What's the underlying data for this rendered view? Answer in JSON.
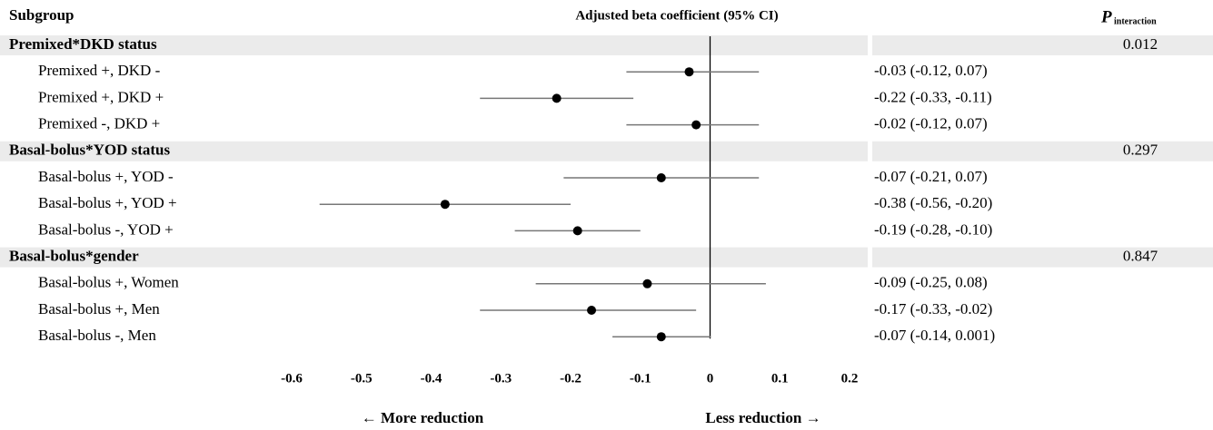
{
  "chart_data": {
    "type": "forest",
    "subgroup_header": "Subgroup",
    "title": "Adjusted beta coefficient (95% CI)",
    "p_header": "P",
    "p_header_sub": "interaction",
    "xlim": [
      -0.6,
      0.2
    ],
    "xticks": [
      -0.6,
      -0.5,
      -0.4,
      -0.3,
      -0.2,
      -0.1,
      0,
      0.1,
      0.2
    ],
    "xlabel_left": "← More reduction",
    "xlabel_right": "Less reduction →",
    "groups": [
      {
        "name": "Premixed*DKD status",
        "p_interaction": 0.012,
        "rows": [
          {
            "label": "Premixed +, DKD -",
            "estimate": -0.03,
            "lower": -0.12,
            "upper": 0.07,
            "ci_label": "-0.03 (-0.12, 0.07)"
          },
          {
            "label": "Premixed +, DKD +",
            "estimate": -0.22,
            "lower": -0.33,
            "upper": -0.11,
            "ci_label": "-0.22 (-0.33, -0.11)"
          },
          {
            "label": "Premixed -, DKD +",
            "estimate": -0.02,
            "lower": -0.12,
            "upper": 0.07,
            "ci_label": "-0.02 (-0.12, 0.07)"
          }
        ]
      },
      {
        "name": "Basal-bolus*YOD status",
        "p_interaction": 0.297,
        "rows": [
          {
            "label": "Basal-bolus +, YOD -",
            "estimate": -0.07,
            "lower": -0.21,
            "upper": 0.07,
            "ci_label": "-0.07 (-0.21, 0.07)"
          },
          {
            "label": "Basal-bolus +, YOD +",
            "estimate": -0.38,
            "lower": -0.56,
            "upper": -0.2,
            "ci_label": "-0.38 (-0.56, -0.20)"
          },
          {
            "label": "Basal-bolus -, YOD +",
            "estimate": -0.19,
            "lower": -0.28,
            "upper": -0.1,
            "ci_label": "-0.19 (-0.28, -0.10)"
          }
        ]
      },
      {
        "name": "Basal-bolus*gender",
        "p_interaction": 0.847,
        "rows": [
          {
            "label": "Basal-bolus +, Women",
            "estimate": -0.09,
            "lower": -0.25,
            "upper": 0.08,
            "ci_label": "-0.09 (-0.25, 0.08)"
          },
          {
            "label": "Basal-bolus +, Men",
            "estimate": -0.17,
            "lower": -0.33,
            "upper": -0.02,
            "ci_label": "-0.17 (-0.33, -0.02)"
          },
          {
            "label": "Basal-bolus -, Men",
            "estimate": -0.07,
            "lower": -0.14,
            "upper": 0.001,
            "ci_label": "-0.07 (-0.14, 0.001)"
          }
        ]
      }
    ]
  }
}
